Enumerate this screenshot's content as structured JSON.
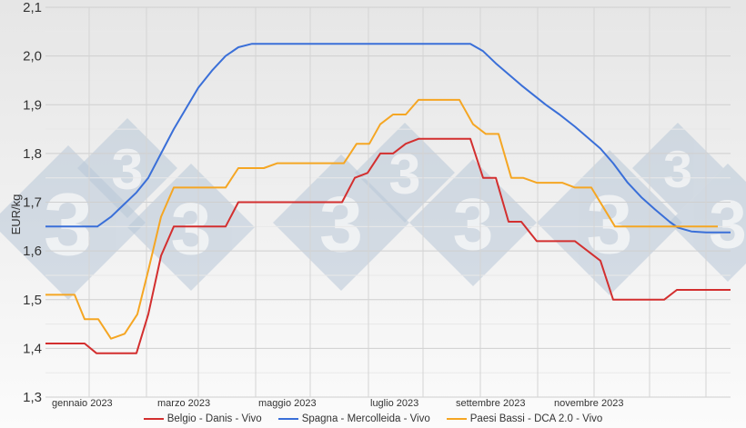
{
  "chart_data": {
    "type": "line",
    "title": "",
    "xlabel": "",
    "ylabel": "EUR/kg",
    "ylim": [
      1.3,
      2.1
    ],
    "yticks": [
      "2,1",
      "2,0",
      "1,9",
      "1,8",
      "1,7",
      "1,6",
      "1,5",
      "1,4",
      "1,3"
    ],
    "xtick_labels": [
      "gennaio 2023",
      "marzo 2023",
      "maggio 2023",
      "luglio 2023",
      "settembre 2023",
      "novembre 2023"
    ],
    "grid": true,
    "legend_position": "bottom",
    "x_unit": "weeks of 2023 (approx.)",
    "series": [
      {
        "name": "Belgio - Danis - Vivo",
        "color": "#d32f2f",
        "points": [
          [
            50,
            1.41
          ],
          [
            93,
            1.41
          ],
          [
            106,
            1.39
          ],
          [
            150,
            1.39
          ],
          [
            163,
            1.47
          ],
          [
            177,
            1.59
          ],
          [
            191,
            1.65
          ],
          [
            248,
            1.65
          ],
          [
            262,
            1.7
          ],
          [
            376,
            1.7
          ],
          [
            390,
            1.75
          ],
          [
            404,
            1.76
          ],
          [
            418,
            1.8
          ],
          [
            432,
            1.8
          ],
          [
            446,
            1.82
          ],
          [
            460,
            1.83
          ],
          [
            517,
            1.83
          ],
          [
            531,
            1.75
          ],
          [
            545,
            1.75
          ],
          [
            559,
            1.66
          ],
          [
            573,
            1.66
          ],
          [
            590,
            1.62
          ],
          [
            632,
            1.62
          ],
          [
            660,
            1.58
          ],
          [
            674,
            1.5
          ],
          [
            730,
            1.5
          ],
          [
            744,
            1.52
          ],
          [
            803,
            1.52
          ]
        ]
      },
      {
        "name": "Spagna - Mercolleida - Vivo",
        "color": "#3a6fd8",
        "points": [
          [
            50,
            1.65
          ],
          [
            107,
            1.65
          ],
          [
            122,
            1.67
          ],
          [
            150,
            1.72
          ],
          [
            163,
            1.75
          ],
          [
            177,
            1.8
          ],
          [
            191,
            1.85
          ],
          [
            218,
            1.935
          ],
          [
            233,
            1.97
          ],
          [
            248,
            2.0
          ],
          [
            262,
            2.018
          ],
          [
            277,
            2.025
          ],
          [
            517,
            2.025
          ],
          [
            531,
            2.01
          ],
          [
            545,
            1.985
          ],
          [
            573,
            1.94
          ],
          [
            600,
            1.9
          ],
          [
            615,
            1.88
          ],
          [
            632,
            1.855
          ],
          [
            660,
            1.81
          ],
          [
            674,
            1.78
          ],
          [
            690,
            1.74
          ],
          [
            705,
            1.71
          ],
          [
            720,
            1.685
          ],
          [
            736,
            1.66
          ],
          [
            745,
            1.648
          ],
          [
            760,
            1.64
          ],
          [
            776,
            1.638
          ],
          [
            803,
            1.638
          ]
        ]
      },
      {
        "name": "Paesi Bassi - DCA 2.0 - Vivo",
        "color": "#f5a623",
        "points": [
          [
            50,
            1.51
          ],
          [
            82,
            1.51
          ],
          [
            93,
            1.46
          ],
          [
            108,
            1.46
          ],
          [
            122,
            1.42
          ],
          [
            137,
            1.43
          ],
          [
            151,
            1.47
          ],
          [
            163,
            1.56
          ],
          [
            177,
            1.67
          ],
          [
            191,
            1.73
          ],
          [
            248,
            1.73
          ],
          [
            262,
            1.77
          ],
          [
            290,
            1.77
          ],
          [
            305,
            1.78
          ],
          [
            378,
            1.78
          ],
          [
            392,
            1.82
          ],
          [
            406,
            1.82
          ],
          [
            418,
            1.86
          ],
          [
            432,
            1.88
          ],
          [
            446,
            1.88
          ],
          [
            460,
            1.91
          ],
          [
            505,
            1.91
          ],
          [
            520,
            1.86
          ],
          [
            534,
            1.84
          ],
          [
            548,
            1.84
          ],
          [
            562,
            1.75
          ],
          [
            575,
            1.75
          ],
          [
            590,
            1.74
          ],
          [
            618,
            1.74
          ],
          [
            632,
            1.73
          ],
          [
            650,
            1.73
          ],
          [
            676,
            1.65
          ],
          [
            789,
            1.65
          ]
        ]
      }
    ]
  },
  "legend": {
    "items": [
      {
        "label": "Belgio - Danis - Vivo",
        "color": "#d32f2f"
      },
      {
        "label": "Spagna - Mercolleida - Vivo",
        "color": "#3a6fd8"
      },
      {
        "label": "Paesi Bassi - DCA 2.0 - Vivo",
        "color": "#f5a623"
      }
    ]
  },
  "watermark": {
    "glyph": "3",
    "color": "#b9c8d8"
  }
}
